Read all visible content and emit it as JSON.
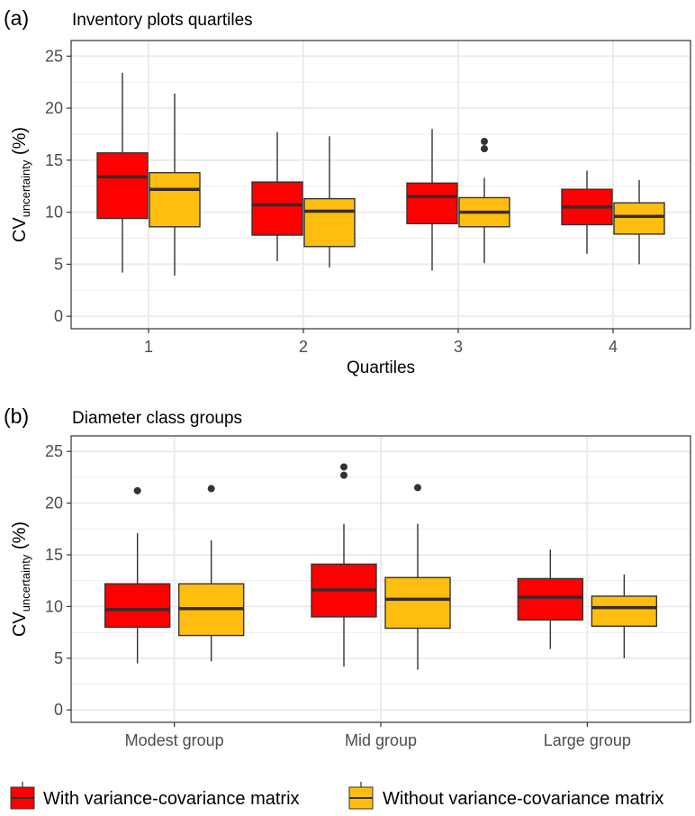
{
  "colors": {
    "with": "#ff0000",
    "without": "#ffbe0f",
    "median": "#3a2a28",
    "grid": "#ebebeb",
    "panel_border": "#333333",
    "text": "#4d4d4d"
  },
  "legend": {
    "items": [
      {
        "label": "With variance-covariance matrix",
        "color_key": "with"
      },
      {
        "label": "Without variance-covariance matrix",
        "color_key": "without"
      }
    ],
    "position": "bottom"
  },
  "chart_data": [
    {
      "type": "box",
      "panel_label": "(a)",
      "title": "Inventory plots quartiles",
      "ylabel_main": "CV",
      "ylabel_sub": "uncertainty",
      "ylabel_suffix": " (%)",
      "xlabel": "Quartiles",
      "categories": [
        "1",
        "2",
        "3",
        "4"
      ],
      "ylim": [
        -1.2,
        26.5
      ],
      "yticks": [
        "0",
        "5",
        "10",
        "15",
        "20",
        "25"
      ],
      "grid": true,
      "series": [
        {
          "name": "With variance-covariance matrix",
          "color_key": "with",
          "boxes": [
            {
              "min": 4.2,
              "q1": 9.4,
              "median": 13.4,
              "q3": 15.7,
              "max": 23.4,
              "outliers": []
            },
            {
              "min": 5.3,
              "q1": 7.8,
              "median": 10.7,
              "q3": 12.9,
              "max": 17.7,
              "outliers": []
            },
            {
              "min": 4.4,
              "q1": 8.9,
              "median": 11.5,
              "q3": 12.8,
              "max": 18.0,
              "outliers": []
            },
            {
              "min": 6.0,
              "q1": 8.8,
              "median": 10.5,
              "q3": 12.2,
              "max": 14.0,
              "outliers": []
            }
          ]
        },
        {
          "name": "Without variance-covariance matrix",
          "color_key": "without",
          "boxes": [
            {
              "min": 3.9,
              "q1": 8.6,
              "median": 12.2,
              "q3": 13.8,
              "max": 21.4,
              "outliers": []
            },
            {
              "min": 4.7,
              "q1": 6.7,
              "median": 10.1,
              "q3": 11.3,
              "max": 17.3,
              "outliers": []
            },
            {
              "min": 5.1,
              "q1": 8.6,
              "median": 10.0,
              "q3": 11.4,
              "max": 13.3,
              "outliers": [
                16.1,
                16.8
              ]
            },
            {
              "min": 5.0,
              "q1": 7.9,
              "median": 9.6,
              "q3": 10.9,
              "max": 13.1,
              "outliers": []
            }
          ]
        }
      ]
    },
    {
      "type": "box",
      "panel_label": "(b)",
      "title": "Diameter class groups",
      "ylabel_main": "CV",
      "ylabel_sub": "uncertainty",
      "ylabel_suffix": " (%)",
      "xlabel": "",
      "categories": [
        "Modest group",
        "Mid group",
        "Large group"
      ],
      "ylim": [
        -1.2,
        26.5
      ],
      "yticks": [
        "0",
        "5",
        "10",
        "15",
        "20",
        "25"
      ],
      "grid": true,
      "series": [
        {
          "name": "With variance-covariance matrix",
          "color_key": "with",
          "boxes": [
            {
              "min": 4.5,
              "q1": 8.0,
              "median": 9.7,
              "q3": 12.2,
              "max": 17.1,
              "outliers": [
                21.2
              ]
            },
            {
              "min": 4.2,
              "q1": 9.0,
              "median": 11.6,
              "q3": 14.1,
              "max": 18.0,
              "outliers": [
                22.7,
                23.5
              ]
            },
            {
              "min": 5.9,
              "q1": 8.7,
              "median": 10.9,
              "q3": 12.7,
              "max": 15.5,
              "outliers": []
            }
          ]
        },
        {
          "name": "Without variance-covariance matrix",
          "color_key": "without",
          "boxes": [
            {
              "min": 4.7,
              "q1": 7.2,
              "median": 9.8,
              "q3": 12.2,
              "max": 16.4,
              "outliers": [
                21.4
              ]
            },
            {
              "min": 3.9,
              "q1": 7.9,
              "median": 10.7,
              "q3": 12.8,
              "max": 18.0,
              "outliers": [
                21.5
              ]
            },
            {
              "min": 5.0,
              "q1": 8.1,
              "median": 9.9,
              "q3": 11.0,
              "max": 13.1,
              "outliers": []
            }
          ]
        }
      ]
    }
  ]
}
